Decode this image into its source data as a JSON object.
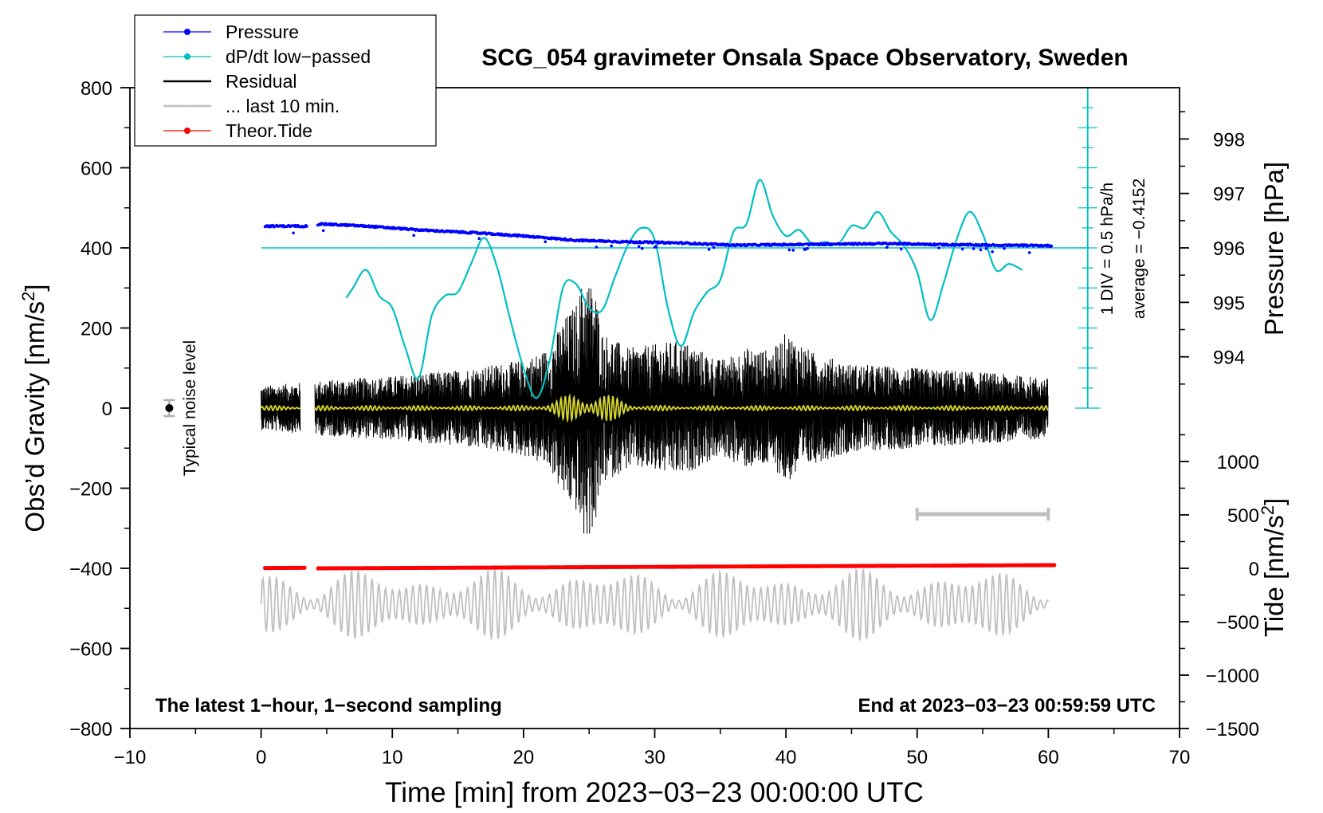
{
  "chart_data": {
    "type": "line",
    "title": "SCG_054 gravimeter Onsala Space Observatory, Sweden",
    "xlabel": "Time [min] from 2023−03−23 00:00:00 UTC",
    "ylabel_left": "Obs’d Gravity [nm/s",
    "ylabel_left_sup": "2",
    "ylabel_left_close": "]",
    "ylabel_right_pressure": "Pressure [hPa]",
    "ylabel_right_tide": "Tide [nm/s",
    "ylabel_right_tide_sup": "2",
    "ylabel_right_tide_close": "]",
    "xlim": [
      -10,
      70
    ],
    "ylim_left": [
      -800,
      800
    ],
    "xticks": [
      -10,
      0,
      10,
      20,
      30,
      40,
      50,
      60,
      70
    ],
    "xtick_labels": [
      "−10",
      "0",
      "10",
      "20",
      "30",
      "40",
      "50",
      "60",
      "70"
    ],
    "yticks_left": [
      800,
      600,
      400,
      200,
      0,
      -200,
      -400,
      -600,
      -800
    ],
    "ytick_labels_left": [
      "800",
      "600",
      "400",
      "200",
      "0",
      "−200",
      "−400",
      "−600",
      "−800"
    ],
    "pressure_axis": {
      "ticks": [
        998,
        997,
        996,
        995,
        994
      ],
      "tick_labels": [
        "998",
        "997",
        "996",
        "995",
        "994"
      ],
      "gravity_equivalent_at_996": 400,
      "gravity_per_hpa": 136
    },
    "tide_axis": {
      "ticks": [
        1000,
        500,
        0,
        -500,
        -1000,
        -1500
      ],
      "tick_labels": [
        "1000",
        "500",
        "0",
        "−500",
        "−1000",
        "−1500"
      ],
      "gravity_equivalent_at_0": -400,
      "gravity_per_unit": 0.2667
    },
    "dpdt_scale": {
      "label1": "1 DIV = 0.5 hPa/h",
      "label2": "average = −0.4152",
      "x_position_min": 63,
      "range_gravity": [
        0,
        800
      ],
      "baseline_gravity": 400
    },
    "legend": [
      {
        "label": "Pressure",
        "color": "#0000ff",
        "style": "line-dot"
      },
      {
        "label": "dP/dt low−passed",
        "color": "#00c0c0",
        "style": "line-dot"
      },
      {
        "label": "Residual",
        "color": "#000000",
        "style": "line"
      },
      {
        "label": "... last 10 min.",
        "color": "#c0c0c0",
        "style": "line"
      },
      {
        "label": "Theor.Tide",
        "color": "#ff0000",
        "style": "line-dot"
      }
    ],
    "series": [
      {
        "name": "Pressure",
        "unit": "hPa",
        "x": [
          0.3,
          1.5,
          3.5,
          4.5,
          8,
          12,
          16,
          20,
          24,
          28,
          32,
          36,
          40,
          44,
          48,
          52,
          56,
          60.3
        ],
        "y": [
          996.4,
          996.4,
          996.4,
          996.44,
          996.4,
          996.33,
          996.28,
          996.22,
          996.14,
          996.11,
          996.09,
          996.05,
          996.06,
          996.07,
          996.08,
          996.06,
          996.05,
          996.04
        ],
        "gaps": [
          [
            3.5,
            4.3
          ]
        ]
      },
      {
        "name": "dP/dt low−passed",
        "unit": "nm/s2-equivalent",
        "x": [
          6.5,
          7,
          8,
          9,
          10,
          11,
          12,
          13,
          14,
          15,
          16,
          17,
          18,
          19,
          20,
          21,
          22,
          23,
          24,
          25,
          26,
          27,
          28,
          29,
          30,
          31,
          32,
          33,
          34,
          35,
          36,
          37,
          38,
          39,
          40,
          41,
          42,
          43,
          44,
          45,
          46,
          47,
          48,
          49,
          50,
          51,
          52,
          53,
          54,
          55,
          56,
          57,
          58
        ],
        "y": [
          275,
          300,
          345,
          280,
          250,
          150,
          75,
          230,
          280,
          290,
          360,
          425,
          350,
          220,
          100,
          25,
          120,
          300,
          310,
          250,
          245,
          330,
          410,
          450,
          420,
          250,
          155,
          240,
          290,
          320,
          440,
          460,
          570,
          480,
          430,
          445,
          410,
          415,
          410,
          455,
          450,
          490,
          440,
          405,
          340,
          220,
          310,
          420,
          490,
          435,
          345,
          360,
          345
        ]
      },
      {
        "name": "Residual",
        "unit": "nm/s2",
        "x_range": [
          0,
          60
        ],
        "gaps": [
          [
            3,
            4.1
          ]
        ],
        "envelope_x": [
          0,
          5,
          10,
          15,
          18,
          20,
          22,
          23,
          24,
          24.7,
          25.5,
          26,
          28,
          30,
          32,
          35,
          37,
          39,
          40,
          42,
          45,
          50,
          55,
          60
        ],
        "envelope_amp": [
          55,
          70,
          80,
          95,
          110,
          120,
          150,
          220,
          260,
          340,
          290,
          190,
          150,
          160,
          170,
          120,
          150,
          145,
          190,
          140,
          110,
          100,
          90,
          75
        ]
      },
      {
        "name": "Low-passed residual",
        "color": "#d4d42a",
        "unit": "nm/s2",
        "x_range": [
          0,
          60
        ],
        "peak_amplitude": 45,
        "peak_at": 25
      },
      {
        "name": "... last 10 min.",
        "unit": "nm/s2",
        "x_range": [
          0,
          60
        ],
        "baseline": -490,
        "amplitude": 90
      },
      {
        "name": "Theor.Tide",
        "unit": "nm/s2",
        "x": [
          0.3,
          3.3,
          4.3,
          60.5
        ],
        "y": [
          3,
          5,
          0,
          30
        ],
        "gaps": [
          [
            3.3,
            4.3
          ]
        ]
      }
    ],
    "noise_marker": {
      "x": -7,
      "y": 0,
      "err": 20,
      "label": "Typical noise level"
    },
    "last10_bar": {
      "x": [
        50,
        60
      ],
      "y": -265
    },
    "annotation_left": "The latest 1−hour, 1−second sampling",
    "annotation_right": "End at 2023−03−23 00:59:59 UTC"
  }
}
